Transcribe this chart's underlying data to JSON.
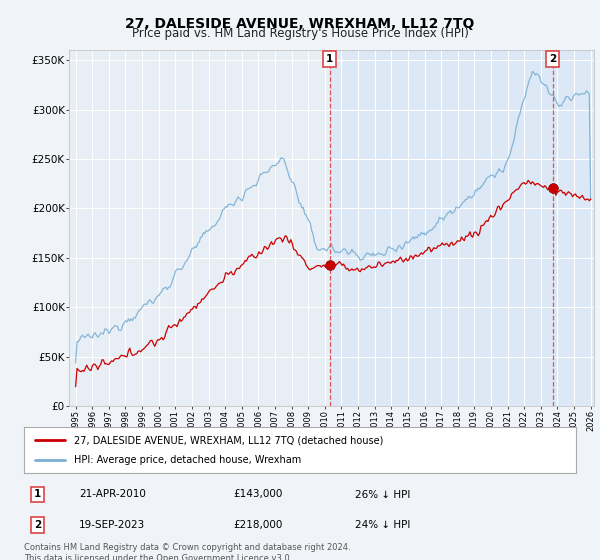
{
  "title": "27, DALESIDE AVENUE, WREXHAM, LL12 7TQ",
  "subtitle": "Price paid vs. HM Land Registry's House Price Index (HPI)",
  "legend_label_red": "27, DALESIDE AVENUE, WREXHAM, LL12 7TQ (detached house)",
  "legend_label_blue": "HPI: Average price, detached house, Wrexham",
  "annotation1_label": "1",
  "annotation1_date": "21-APR-2010",
  "annotation1_price": "£143,000",
  "annotation1_hpi": "26% ↓ HPI",
  "annotation1_year": 2010.3,
  "annotation1_value": 143000,
  "annotation2_label": "2",
  "annotation2_date": "19-SEP-2023",
  "annotation2_price": "£218,000",
  "annotation2_hpi": "24% ↓ HPI",
  "annotation2_year": 2023.72,
  "annotation2_value": 218000,
  "footer": "Contains HM Land Registry data © Crown copyright and database right 2024.\nThis data is licensed under the Open Government Licence v3.0.",
  "ylim": [
    0,
    360000
  ],
  "yticks": [
    0,
    50000,
    100000,
    150000,
    200000,
    250000,
    300000,
    350000
  ],
  "ytick_labels": [
    "£0",
    "£50K",
    "£100K",
    "£150K",
    "£200K",
    "£250K",
    "£300K",
    "£350K"
  ],
  "xlim_left": 1994.6,
  "xlim_right": 2026.2,
  "background_color": "#f0f4f8",
  "plot_bg_color": "#e8eef5",
  "shade_color": "#dce8f5",
  "grid_color": "#ffffff",
  "red_color": "#cc0000",
  "blue_color": "#7aafd4",
  "vline_color": "#dd4444",
  "title_fontsize": 10,
  "subtitle_fontsize": 8.5
}
